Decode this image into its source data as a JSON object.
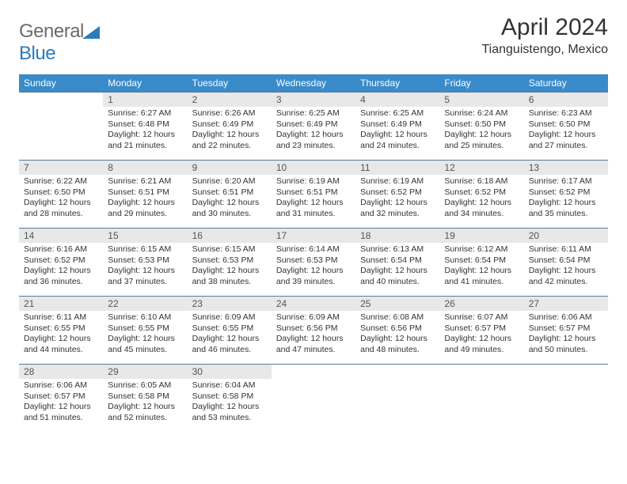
{
  "logo": {
    "text_gray": "General",
    "text_blue": "Blue",
    "gray_color": "#6b6b6b",
    "blue_color": "#2b7bbf",
    "tri_color": "#2b7bbf"
  },
  "header": {
    "month_title": "April 2024",
    "location": "Tianguistengo, Mexico",
    "title_fontsize": 30,
    "loc_fontsize": 16
  },
  "calendar": {
    "header_bg": "#3a8bc9",
    "header_fg": "#ffffff",
    "daynum_bg": "#e8e8e8",
    "rule_color": "#5a7a98",
    "body_bg": "#ffffff",
    "cell_fontsize": 10.5,
    "columns": [
      "Sunday",
      "Monday",
      "Tuesday",
      "Wednesday",
      "Thursday",
      "Friday",
      "Saturday"
    ],
    "lead_blanks": 1,
    "days": [
      {
        "n": 1,
        "sr": "6:27 AM",
        "ss": "6:48 PM",
        "dl": "12 hours and 21 minutes."
      },
      {
        "n": 2,
        "sr": "6:26 AM",
        "ss": "6:49 PM",
        "dl": "12 hours and 22 minutes."
      },
      {
        "n": 3,
        "sr": "6:25 AM",
        "ss": "6:49 PM",
        "dl": "12 hours and 23 minutes."
      },
      {
        "n": 4,
        "sr": "6:25 AM",
        "ss": "6:49 PM",
        "dl": "12 hours and 24 minutes."
      },
      {
        "n": 5,
        "sr": "6:24 AM",
        "ss": "6:50 PM",
        "dl": "12 hours and 25 minutes."
      },
      {
        "n": 6,
        "sr": "6:23 AM",
        "ss": "6:50 PM",
        "dl": "12 hours and 27 minutes."
      },
      {
        "n": 7,
        "sr": "6:22 AM",
        "ss": "6:50 PM",
        "dl": "12 hours and 28 minutes."
      },
      {
        "n": 8,
        "sr": "6:21 AM",
        "ss": "6:51 PM",
        "dl": "12 hours and 29 minutes."
      },
      {
        "n": 9,
        "sr": "6:20 AM",
        "ss": "6:51 PM",
        "dl": "12 hours and 30 minutes."
      },
      {
        "n": 10,
        "sr": "6:19 AM",
        "ss": "6:51 PM",
        "dl": "12 hours and 31 minutes."
      },
      {
        "n": 11,
        "sr": "6:19 AM",
        "ss": "6:52 PM",
        "dl": "12 hours and 32 minutes."
      },
      {
        "n": 12,
        "sr": "6:18 AM",
        "ss": "6:52 PM",
        "dl": "12 hours and 34 minutes."
      },
      {
        "n": 13,
        "sr": "6:17 AM",
        "ss": "6:52 PM",
        "dl": "12 hours and 35 minutes."
      },
      {
        "n": 14,
        "sr": "6:16 AM",
        "ss": "6:52 PM",
        "dl": "12 hours and 36 minutes."
      },
      {
        "n": 15,
        "sr": "6:15 AM",
        "ss": "6:53 PM",
        "dl": "12 hours and 37 minutes."
      },
      {
        "n": 16,
        "sr": "6:15 AM",
        "ss": "6:53 PM",
        "dl": "12 hours and 38 minutes."
      },
      {
        "n": 17,
        "sr": "6:14 AM",
        "ss": "6:53 PM",
        "dl": "12 hours and 39 minutes."
      },
      {
        "n": 18,
        "sr": "6:13 AM",
        "ss": "6:54 PM",
        "dl": "12 hours and 40 minutes."
      },
      {
        "n": 19,
        "sr": "6:12 AM",
        "ss": "6:54 PM",
        "dl": "12 hours and 41 minutes."
      },
      {
        "n": 20,
        "sr": "6:11 AM",
        "ss": "6:54 PM",
        "dl": "12 hours and 42 minutes."
      },
      {
        "n": 21,
        "sr": "6:11 AM",
        "ss": "6:55 PM",
        "dl": "12 hours and 44 minutes."
      },
      {
        "n": 22,
        "sr": "6:10 AM",
        "ss": "6:55 PM",
        "dl": "12 hours and 45 minutes."
      },
      {
        "n": 23,
        "sr": "6:09 AM",
        "ss": "6:55 PM",
        "dl": "12 hours and 46 minutes."
      },
      {
        "n": 24,
        "sr": "6:09 AM",
        "ss": "6:56 PM",
        "dl": "12 hours and 47 minutes."
      },
      {
        "n": 25,
        "sr": "6:08 AM",
        "ss": "6:56 PM",
        "dl": "12 hours and 48 minutes."
      },
      {
        "n": 26,
        "sr": "6:07 AM",
        "ss": "6:57 PM",
        "dl": "12 hours and 49 minutes."
      },
      {
        "n": 27,
        "sr": "6:06 AM",
        "ss": "6:57 PM",
        "dl": "12 hours and 50 minutes."
      },
      {
        "n": 28,
        "sr": "6:06 AM",
        "ss": "6:57 PM",
        "dl": "12 hours and 51 minutes."
      },
      {
        "n": 29,
        "sr": "6:05 AM",
        "ss": "6:58 PM",
        "dl": "12 hours and 52 minutes."
      },
      {
        "n": 30,
        "sr": "6:04 AM",
        "ss": "6:58 PM",
        "dl": "12 hours and 53 minutes."
      }
    ],
    "labels": {
      "sunrise": "Sunrise:",
      "sunset": "Sunset:",
      "daylight": "Daylight:"
    }
  }
}
